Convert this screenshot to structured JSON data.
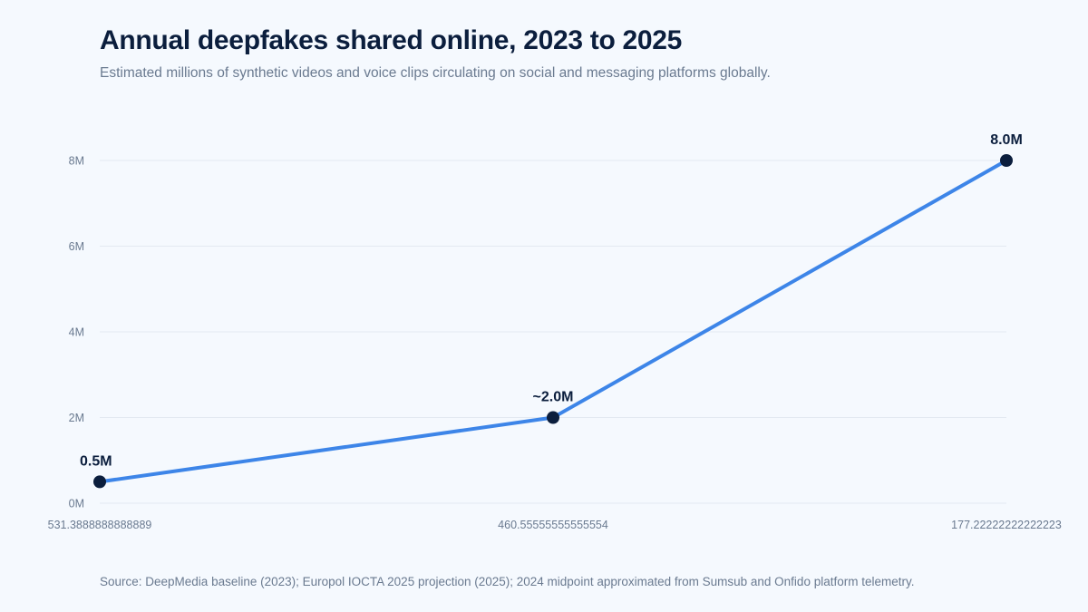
{
  "header": {
    "title": "Annual deepfakes shared online, 2023 to 2025",
    "subtitle": "Estimated millions of synthetic videos and voice clips circulating on social and messaging platforms globally."
  },
  "footer": {
    "source": "Source: DeepMedia baseline (2023); Europol IOCTA 2025 projection (2025); 2024 midpoint approximated from Sumsub and Onfido platform telemetry."
  },
  "colors": {
    "line": "#3d85e8",
    "point": "#0b1e3d",
    "grid": "#e3e9f1"
  },
  "chart_data": {
    "type": "line",
    "title": "Annual deepfakes shared online, 2023 to 2025",
    "subtitle": "Estimated millions of synthetic videos and voice clips circulating on social and messaging platforms globally.",
    "categories": [
      "531.3888888888889",
      "460.55555555555554",
      "177.22222222222223"
    ],
    "values": [
      0.5,
      2.0,
      8.0
    ],
    "data_labels": [
      "0.5M",
      "~2.0M",
      "8.0M"
    ],
    "y_ticks": [
      0,
      2,
      4,
      6,
      8
    ],
    "y_tick_labels": [
      "0M",
      "2M",
      "4M",
      "6M",
      "8M"
    ],
    "ylim": [
      0,
      8
    ],
    "xlabel": "",
    "ylabel": "",
    "grid": true,
    "legend": "none"
  }
}
